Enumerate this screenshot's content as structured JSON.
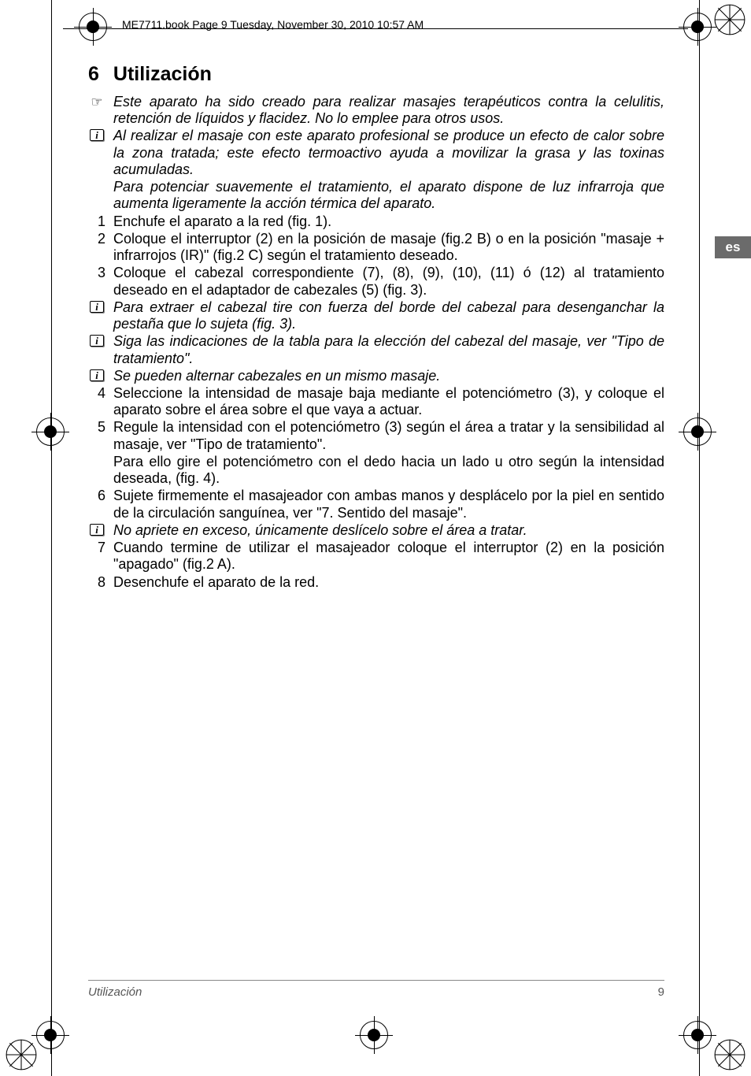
{
  "header": {
    "text": "ME7711.book  Page 9  Tuesday, November 30, 2010  10:57 AM"
  },
  "lang_tab": "es",
  "section": {
    "number": "6",
    "title": "Utilización"
  },
  "paragraphs": [
    {
      "marker": "hand",
      "style": "italic",
      "text": "Este aparato ha sido creado para realizar masajes terapéuticos contra la celulitis, retención de líquidos y flacidez. No lo emplee para otros usos."
    },
    {
      "marker": "info",
      "style": "italic",
      "text": "Al realizar el masaje con este aparato profesional se produce un efecto de calor sobre la zona tratada; este efecto termoactivo ayuda a movilizar la grasa y las toxinas acumuladas."
    },
    {
      "marker": "",
      "style": "italic",
      "text": "Para potenciar suavemente el tratamiento, el aparato dispone de luz infrarroja que aumenta ligeramente la acción térmica del aparato."
    },
    {
      "marker": "1",
      "style": "",
      "text": "Enchufe el aparato a la red (fig. 1)."
    },
    {
      "marker": "2",
      "style": "",
      "text": "Coloque el interruptor (2) en la posición de masaje (fig.2 B) o en la posición \"masaje + infrarrojos (IR)\" (fig.2 C) según el tratamiento deseado."
    },
    {
      "marker": "3",
      "style": "",
      "text": "Coloque el cabezal correspondiente (7), (8), (9), (10), (11) ó (12) al tratamiento deseado en el adaptador de cabezales (5) (fig. 3)."
    },
    {
      "marker": "info",
      "style": "italic",
      "text": "Para  extraer el cabezal tire con fuerza del borde del cabezal para desenganchar la pestaña que lo sujeta (fig. 3)."
    },
    {
      "marker": "info",
      "style": "italic",
      "text": "Siga las indicaciones de la tabla para la elección del cabezal del masaje, ver \"Tipo de tratamiento\"."
    },
    {
      "marker": "info",
      "style": "italic",
      "text": "Se pueden alternar cabezales en un mismo masaje."
    },
    {
      "marker": "4",
      "style": "",
      "text": "Seleccione la intensidad de masaje baja mediante el potenciómetro (3), y coloque el aparato sobre el área sobre el que vaya a actuar."
    },
    {
      "marker": "5",
      "style": "",
      "text": "Regule la intensidad con el potenciómetro (3) según el área a tratar y la sensibilidad al masaje, ver \"Tipo de tratamiento\"."
    },
    {
      "marker": "",
      "style": "",
      "text": "Para ello gire el potenciómetro con el dedo hacia un lado u otro según la intensidad deseada, (fig. 4)."
    },
    {
      "marker": "6",
      "style": "",
      "text": "Sujete firmemente el masajeador con ambas manos y desplácelo por la piel en sentido de la circulación sanguínea, ver \"7. Sentido del masaje\"."
    },
    {
      "marker": "info",
      "style": "italic",
      "text": "No apriete en exceso, únicamente deslícelo sobre el área a tratar."
    },
    {
      "marker": "7",
      "style": "",
      "text": "Cuando termine de utilizar el masajeador coloque el interruptor (2) en la posición \"apagado\" (fig.2 A)."
    },
    {
      "marker": "8",
      "style": "",
      "text": "Desenchufe el aparato de la red."
    }
  ],
  "footer": {
    "section": "Utilización",
    "page": "9"
  },
  "colors": {
    "tab_bg": "#6b6b6b",
    "tab_text": "#ffffff",
    "footer_text": "#555555"
  }
}
